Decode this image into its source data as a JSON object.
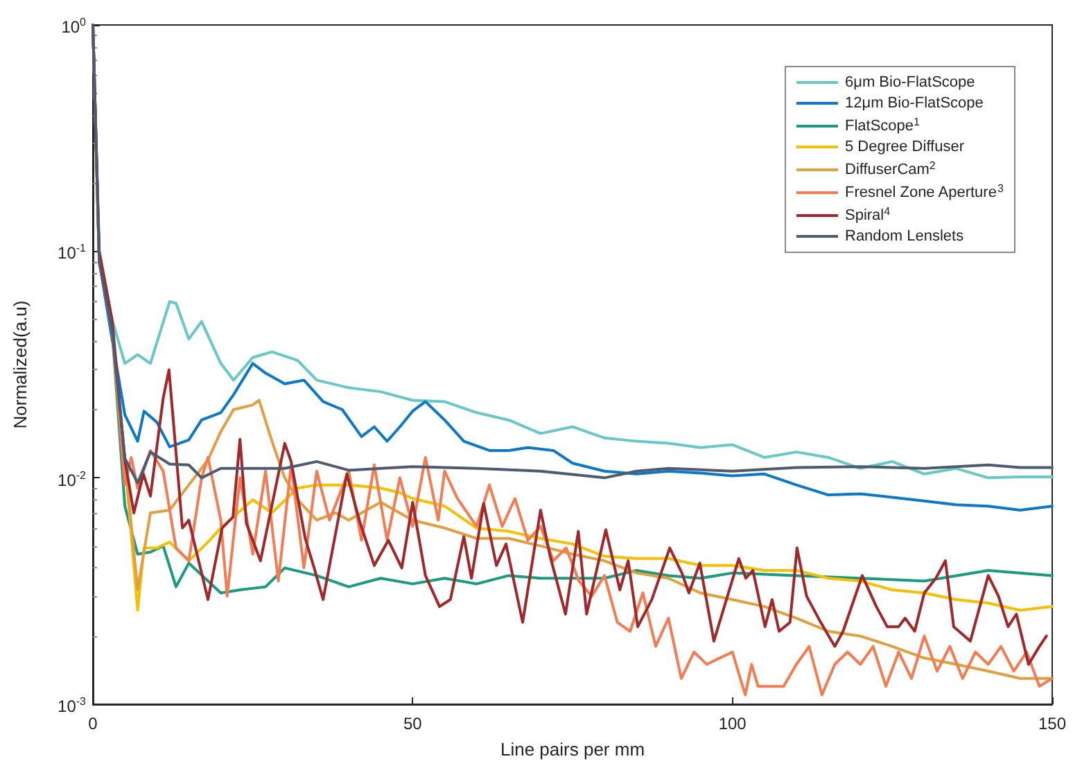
{
  "chart_data": {
    "type": "line",
    "xlabel": "Line pairs per mm",
    "ylabel": "Normalized(a.u)",
    "log": "y",
    "grid": false,
    "legend": "top right",
    "marker": "none",
    "line_style": "solid",
    "xlim": [
      0,
      150
    ],
    "xticks": [
      0,
      50,
      100,
      150
    ],
    "ylim": [
      0.001,
      1
    ],
    "yticks": [
      {
        "value": 1,
        "label": "10$^{0}$"
      },
      {
        "value": 0.1,
        "label": "10$^{-1}$"
      },
      {
        "value": 0.01,
        "label": "10$^{-2}$"
      },
      {
        "value": 0.001,
        "label": "10$^{-3}$"
      }
    ],
    "series": [
      {
        "name": "6μm Bio-FlatScope",
        "color": "#66c8c8",
        "x": [
          0,
          1,
          3,
          5,
          7,
          9,
          12,
          13,
          15,
          17,
          20,
          22,
          25,
          28,
          32,
          35,
          40,
          45,
          50,
          55,
          60,
          65,
          70,
          75,
          80,
          85,
          90,
          95,
          100,
          105,
          110,
          115,
          120,
          125,
          130,
          135,
          140,
          145,
          150
        ],
        "values": [
          1,
          0.088,
          0.05,
          0.032,
          0.035,
          0.032,
          0.06,
          0.059,
          0.041,
          0.049,
          0.032,
          0.027,
          0.034,
          0.036,
          0.033,
          0.027,
          0.025,
          0.024,
          0.022,
          0.0217,
          0.0194,
          0.018,
          0.0157,
          0.0168,
          0.015,
          0.0145,
          0.0142,
          0.0136,
          0.014,
          0.0123,
          0.013,
          0.0123,
          0.011,
          0.0118,
          0.0104,
          0.011,
          0.01,
          0.0101,
          0.0101
        ]
      },
      {
        "name": "12μm Bio-FlatScope",
        "color": "#0b78c8",
        "x": [
          0,
          1,
          3,
          5,
          7,
          8,
          10,
          12,
          15,
          17,
          20,
          22,
          25,
          27,
          30,
          33,
          36,
          39,
          42,
          44,
          46,
          48,
          50,
          52,
          55,
          58,
          62,
          65,
          68,
          72,
          75,
          80,
          85,
          90,
          95,
          100,
          105,
          110,
          115,
          120,
          125,
          130,
          135,
          140,
          145,
          150
        ],
        "values": [
          1,
          0.09,
          0.041,
          0.019,
          0.0145,
          0.0197,
          0.0176,
          0.0137,
          0.0147,
          0.018,
          0.0194,
          0.0233,
          0.032,
          0.029,
          0.026,
          0.027,
          0.0217,
          0.02,
          0.0152,
          0.0168,
          0.0145,
          0.0168,
          0.0197,
          0.0217,
          0.018,
          0.0145,
          0.0132,
          0.0132,
          0.0136,
          0.0132,
          0.0116,
          0.0107,
          0.0104,
          0.0107,
          0.0105,
          0.0102,
          0.0104,
          0.0093,
          0.0084,
          0.0085,
          0.0082,
          0.0079,
          0.0076,
          0.0075,
          0.0072,
          0.0075
        ]
      },
      {
        "name": "FlatScope$^{1}$",
        "color": "#1a9a7e",
        "x": [
          0,
          1,
          3,
          5,
          7,
          9,
          11,
          13,
          15,
          18,
          20,
          23,
          27,
          30,
          35,
          40,
          45,
          50,
          55,
          60,
          65,
          70,
          75,
          80,
          85,
          90,
          95,
          100,
          110,
          120,
          130,
          140,
          150
        ],
        "values": [
          1,
          0.09,
          0.045,
          0.0075,
          0.0046,
          0.0047,
          0.005,
          0.0033,
          0.0042,
          0.0035,
          0.0031,
          0.0032,
          0.0033,
          0.004,
          0.0037,
          0.0033,
          0.0036,
          0.0034,
          0.0036,
          0.0034,
          0.0037,
          0.0036,
          0.0036,
          0.0036,
          0.0039,
          0.0037,
          0.0036,
          0.0038,
          0.0037,
          0.0036,
          0.0035,
          0.0039,
          0.0037
        ]
      },
      {
        "name": "5 Degree Diffuser",
        "color": "#f5c000",
        "x": [
          3,
          5,
          7,
          8,
          10,
          12,
          15,
          18,
          20,
          25,
          28,
          32,
          35,
          40,
          45,
          48,
          50,
          55,
          60,
          65,
          70,
          75,
          80,
          85,
          90,
          95,
          100,
          105,
          110,
          115,
          120,
          125,
          130,
          135,
          140,
          145,
          150
        ],
        "values": [
          0.045,
          0.012,
          0.0026,
          0.0049,
          0.0049,
          0.0052,
          0.0043,
          0.0052,
          0.006,
          0.008,
          0.007,
          0.009,
          0.0093,
          0.0093,
          0.009,
          0.0086,
          0.0081,
          0.0075,
          0.006,
          0.0058,
          0.0054,
          0.0051,
          0.0045,
          0.0044,
          0.0044,
          0.0041,
          0.0041,
          0.0039,
          0.0039,
          0.0036,
          0.0035,
          0.0032,
          0.0031,
          0.0029,
          0.0028,
          0.0026,
          0.0027
        ]
      },
      {
        "name": "DiffuserCam$^{2}$",
        "color": "#e0a040",
        "x": [
          0,
          1,
          3,
          5,
          7,
          9,
          12,
          15,
          18,
          20,
          22,
          25,
          26,
          28,
          30,
          32,
          35,
          38,
          40,
          45,
          50,
          55,
          60,
          65,
          70,
          75,
          80,
          85,
          90,
          95,
          100,
          105,
          110,
          115,
          120,
          125,
          130,
          135,
          140,
          145,
          150
        ],
        "values": [
          1,
          0.09,
          0.045,
          0.012,
          0.0032,
          0.007,
          0.0072,
          0.0093,
          0.012,
          0.016,
          0.02,
          0.021,
          0.022,
          0.0145,
          0.01,
          0.008,
          0.0065,
          0.007,
          0.0065,
          0.0078,
          0.0065,
          0.006,
          0.0054,
          0.0054,
          0.005,
          0.0046,
          0.0043,
          0.0038,
          0.0036,
          0.0031,
          0.0029,
          0.0027,
          0.0024,
          0.0021,
          0.002,
          0.0018,
          0.0016,
          0.0015,
          0.0014,
          0.0013,
          0.0013
        ]
      },
      {
        "name": "Fresnel Zone Aperture$^{3}$",
        "color": "#f47c52",
        "x": [
          0,
          1,
          3,
          5,
          6,
          7,
          9,
          11,
          13,
          15,
          17,
          18,
          20,
          21,
          23,
          25,
          27,
          29,
          31,
          33,
          35,
          37,
          40,
          42,
          44,
          46,
          48,
          50,
          52,
          54,
          55,
          57,
          60,
          62,
          64,
          66,
          68,
          70,
          72,
          74,
          76,
          78,
          80,
          82,
          84,
          86,
          88,
          90,
          92,
          94,
          96,
          98,
          100,
          102,
          103,
          104,
          106,
          108,
          110,
          112,
          114,
          116,
          118,
          120,
          122,
          124,
          126,
          128,
          130,
          132,
          134,
          136,
          138,
          140,
          142,
          144,
          146,
          148,
          150
        ],
        "values": [
          1,
          0.09,
          0.045,
          0.0093,
          0.0123,
          0.009,
          0.0132,
          0.0107,
          0.0049,
          0.0043,
          0.01,
          0.0123,
          0.0065,
          0.003,
          0.01,
          0.0046,
          0.0107,
          0.0035,
          0.0114,
          0.004,
          0.0107,
          0.0065,
          0.0107,
          0.0053,
          0.0114,
          0.0053,
          0.01,
          0.0061,
          0.0123,
          0.0065,
          0.0107,
          0.0081,
          0.0061,
          0.0093,
          0.0061,
          0.0081,
          0.0053,
          0.0061,
          0.0043,
          0.0049,
          0.0035,
          0.003,
          0.0037,
          0.0023,
          0.0021,
          0.0031,
          0.0018,
          0.0024,
          0.0013,
          0.0017,
          0.0015,
          0.0016,
          0.0017,
          0.0011,
          0.0015,
          0.0012,
          0.0012,
          0.0012,
          0.0015,
          0.0018,
          0.0011,
          0.0015,
          0.0017,
          0.0015,
          0.0018,
          0.0012,
          0.0017,
          0.0013,
          0.002,
          0.0014,
          0.0018,
          0.0013,
          0.0017,
          0.0015,
          0.0018,
          0.0014,
          0.0017,
          0.0012,
          0.0013
        ]
      },
      {
        "name": "Spiral$^{4}$",
        "color": "#a0282a",
        "x": [
          0,
          1,
          3,
          5,
          6.4,
          7.9,
          9,
          11,
          11.9,
          14,
          15,
          18,
          20.2,
          21.9,
          23,
          24,
          26.2,
          30,
          31,
          33.2,
          34.6,
          36,
          39.7,
          41.8,
          44,
          46.2,
          48.3,
          50,
          52,
          54.2,
          55.9,
          58,
          59.2,
          61.1,
          63.1,
          64.6,
          67.2,
          70,
          71.5,
          73.9,
          75.9,
          77.2,
          80.2,
          82.4,
          83.7,
          85.2,
          87.4,
          90.2,
          92.1,
          93.2,
          94.9,
          97.1,
          101,
          102.1,
          103.2,
          105.1,
          106.2,
          107.3,
          109,
          110.1,
          111.6,
          113.8,
          116,
          117.3,
          120.3,
          122.5,
          124.2,
          126,
          127,
          128.5,
          130,
          131.8,
          133.3,
          134.6,
          137.2,
          140,
          141.6,
          143.1,
          144.4,
          146.3,
          148,
          149.1
        ],
        "values": [
          1,
          0.1,
          0.05,
          0.012,
          0.007,
          0.0104,
          0.0083,
          0.0225,
          0.03,
          0.006,
          0.0065,
          0.0029,
          0.006,
          0.0067,
          0.0148,
          0.0063,
          0.0043,
          0.0142,
          0.0118,
          0.0054,
          0.004,
          0.0029,
          0.0104,
          0.0063,
          0.0041,
          0.0053,
          0.004,
          0.0078,
          0.0037,
          0.0027,
          0.0029,
          0.0055,
          0.0036,
          0.0077,
          0.0041,
          0.0051,
          0.0023,
          0.0072,
          0.0045,
          0.0025,
          0.0058,
          0.0025,
          0.0059,
          0.0032,
          0.0043,
          0.0022,
          0.0029,
          0.0049,
          0.0038,
          0.0031,
          0.0042,
          0.0019,
          0.0044,
          0.0036,
          0.0039,
          0.0022,
          0.0029,
          0.0021,
          0.0023,
          0.0049,
          0.003,
          0.0023,
          0.0018,
          0.0021,
          0.0037,
          0.0027,
          0.0022,
          0.0022,
          0.0024,
          0.0021,
          0.0031,
          0.0036,
          0.0043,
          0.0022,
          0.0019,
          0.0037,
          0.003,
          0.0022,
          0.0025,
          0.0015,
          0.0018,
          0.002
        ]
      },
      {
        "name": "Random Lenslets",
        "color": "#4d5a70",
        "x": [
          0,
          1,
          3,
          5,
          7,
          9,
          12,
          15,
          17,
          20,
          25,
          30,
          35,
          40,
          45,
          50,
          60,
          70,
          80,
          85,
          90,
          100,
          110,
          120,
          130,
          140,
          145,
          150
        ],
        "values": [
          1,
          0.09,
          0.045,
          0.0122,
          0.0095,
          0.013,
          0.0115,
          0.0114,
          0.01,
          0.011,
          0.011,
          0.011,
          0.0118,
          0.0108,
          0.011,
          0.0112,
          0.011,
          0.0107,
          0.01,
          0.0107,
          0.011,
          0.0107,
          0.0111,
          0.0112,
          0.011,
          0.0114,
          0.0111,
          0.0111
        ]
      }
    ]
  }
}
